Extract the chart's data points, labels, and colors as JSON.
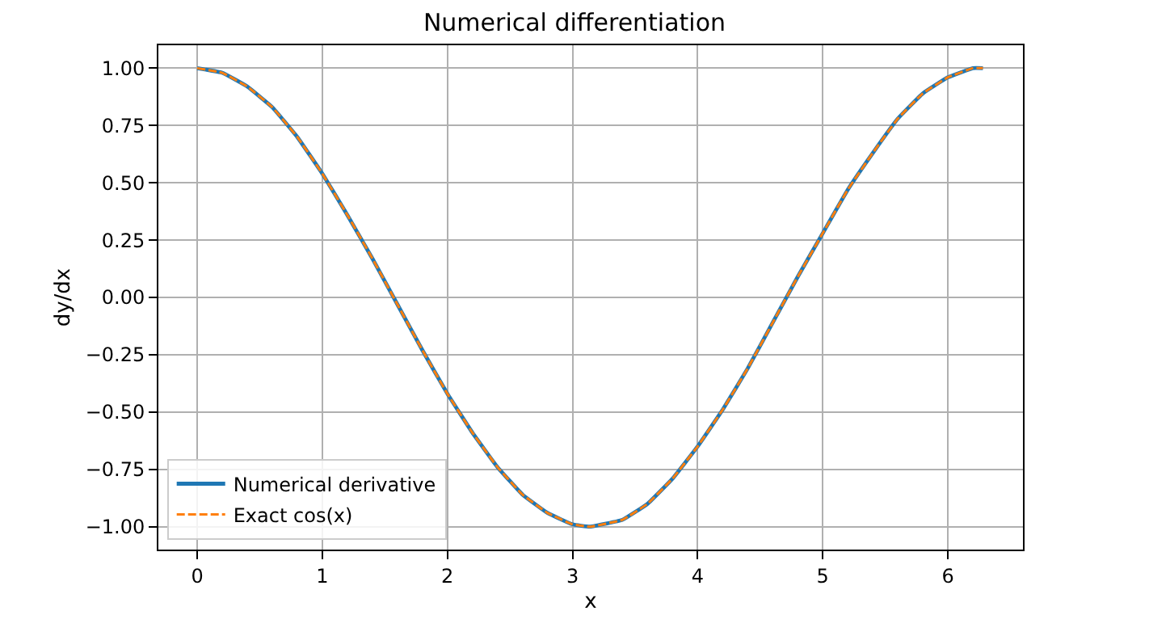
{
  "chart_data": {
    "type": "line",
    "title": "Numerical differentiation",
    "xlabel": "x",
    "ylabel": "dy/dx",
    "x": [
      0,
      0.2,
      0.4,
      0.6,
      0.8,
      1.0,
      1.2,
      1.4,
      1.6,
      1.8,
      2.0,
      2.2,
      2.4,
      2.6,
      2.8,
      3.0,
      3.14,
      3.4,
      3.6,
      3.8,
      4.0,
      4.2,
      4.4,
      4.6,
      4.8,
      5.0,
      5.2,
      5.4,
      5.6,
      5.8,
      6.0,
      6.2,
      6.28
    ],
    "series": [
      {
        "name": "Numerical derivative",
        "color": "#1f77b4",
        "line_style": "solid",
        "values": [
          1.0,
          0.98,
          0.92,
          0.83,
          0.7,
          0.54,
          0.36,
          0.17,
          -0.03,
          -0.23,
          -0.42,
          -0.59,
          -0.74,
          -0.86,
          -0.94,
          -0.99,
          -1.0,
          -0.97,
          -0.9,
          -0.79,
          -0.65,
          -0.49,
          -0.31,
          -0.11,
          0.09,
          0.28,
          0.47,
          0.63,
          0.78,
          0.89,
          0.96,
          1.0,
          1.0
        ]
      },
      {
        "name": "Exact cos(x)",
        "color": "#ff7f0e",
        "line_style": "dashed",
        "values": [
          1.0,
          0.98,
          0.92,
          0.83,
          0.7,
          0.54,
          0.36,
          0.17,
          -0.03,
          -0.23,
          -0.42,
          -0.59,
          -0.74,
          -0.86,
          -0.94,
          -0.99,
          -1.0,
          -0.97,
          -0.9,
          -0.79,
          -0.65,
          -0.49,
          -0.31,
          -0.11,
          0.09,
          0.28,
          0.47,
          0.63,
          0.78,
          0.89,
          0.96,
          1.0,
          1.0
        ]
      }
    ],
    "xlim": [
      -0.31,
      6.6
    ],
    "xticks": [
      0,
      1,
      2,
      3,
      4,
      5,
      6
    ],
    "ylim": [
      -1.1,
      1.1
    ],
    "yticks": [
      {
        "value": -1,
        "label": "−1.00"
      },
      {
        "value": -0.75,
        "label": "−0.75"
      },
      {
        "value": -0.5,
        "label": "−0.50"
      },
      {
        "value": -0.25,
        "label": "−0.25"
      },
      {
        "value": 0,
        "label": "0.00"
      },
      {
        "value": 0.25,
        "label": "0.25"
      },
      {
        "value": 0.5,
        "label": "0.50"
      },
      {
        "value": 0.75,
        "label": "0.75"
      },
      {
        "value": 1,
        "label": "1.00"
      }
    ],
    "grid": true,
    "legend": "bottom left",
    "marker": "none"
  }
}
